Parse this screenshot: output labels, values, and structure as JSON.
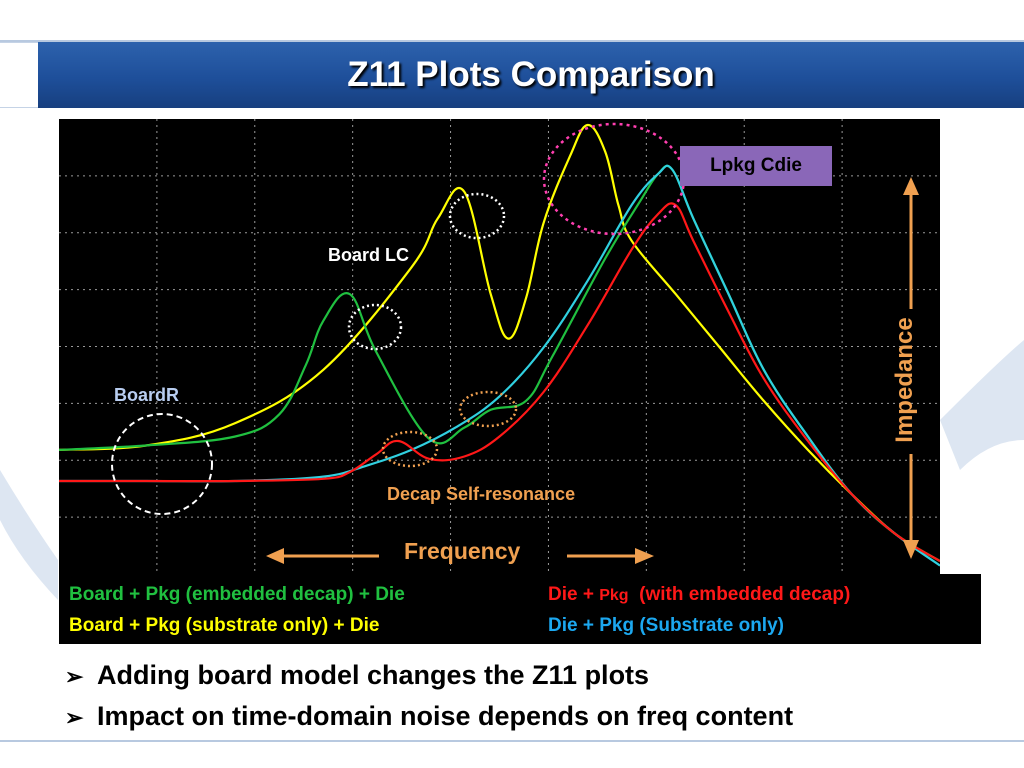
{
  "slide": {
    "title": "Z11 Plots Comparison",
    "bullets": [
      {
        "marker": "➢",
        "text": "Adding board model changes the Z11 plots"
      },
      {
        "marker": "➢",
        "text": "Impact on time-domain noise depends on freq content"
      }
    ]
  },
  "chart_data": {
    "type": "line",
    "title": "",
    "xlabel": "Frequency",
    "ylabel": "Impedance",
    "xlim": [
      0,
      10
    ],
    "ylim": [
      0,
      10
    ],
    "grid": true,
    "legend_placement": "below",
    "series": [
      {
        "name": "Board + Pkg (embedded decap) + Die",
        "color": "#20c040",
        "x": [
          0,
          1,
          2,
          2.5,
          2.8,
          3.0,
          3.3,
          3.6,
          4.2,
          4.6,
          4.9,
          5.3,
          5.6,
          6.2,
          6.6,
          6.8,
          6.96,
          7.2,
          7.6,
          8.0,
          8.5,
          9.0,
          9.5,
          10.0
        ],
        "y": [
          2.7,
          2.8,
          3.0,
          3.5,
          4.6,
          5.6,
          6.2,
          4.9,
          2.95,
          3.2,
          3.6,
          3.8,
          4.8,
          7.0,
          8.3,
          8.9,
          9.0,
          7.9,
          6.2,
          4.5,
          3.0,
          1.7,
          0.8,
          0.2
        ]
      },
      {
        "name": "Board + Pkg (substrate only) + Die",
        "color": "#ffff00",
        "x": [
          0,
          1,
          2,
          3,
          4,
          4.3,
          4.6,
          4.9,
          5.1,
          5.3,
          5.5,
          5.8,
          6.0,
          6.2,
          6.35,
          6.5,
          7.0,
          7.5,
          8.0,
          8.5,
          9.0,
          9.5,
          10.0
        ],
        "y": [
          2.7,
          2.8,
          3.3,
          4.5,
          6.8,
          7.9,
          8.5,
          6.2,
          5.2,
          6.1,
          7.8,
          9.3,
          10.0,
          9.4,
          8.2,
          7.4,
          6.2,
          5.0,
          3.8,
          2.7,
          1.7,
          0.8,
          0.2
        ]
      },
      {
        "name": "Die + Pkg  (with embedded decap)",
        "color": "#ff1818",
        "x": [
          0,
          1,
          2,
          3,
          3.3,
          3.6,
          3.85,
          4.2,
          4.6,
          5.0,
          5.5,
          6.0,
          6.5,
          6.8,
          7.0,
          7.2,
          7.6,
          8.0,
          8.5,
          9.0,
          9.5,
          10.0
        ],
        "y": [
          2.0,
          2.0,
          2.0,
          2.05,
          2.2,
          2.6,
          2.9,
          2.5,
          2.55,
          3.0,
          4.0,
          5.5,
          7.2,
          8.0,
          8.2,
          7.4,
          5.8,
          4.3,
          2.9,
          1.7,
          0.8,
          0.2
        ]
      },
      {
        "name": "Die + Pkg (Substrate only)",
        "color": "#30d0e0",
        "x": [
          0,
          1,
          2,
          3,
          3.5,
          4.0,
          4.5,
          5.0,
          5.5,
          6.0,
          6.5,
          6.8,
          6.96,
          7.2,
          7.6,
          8.0,
          8.5,
          9.0,
          9.5,
          10.0
        ],
        "y": [
          2.0,
          2.0,
          2.0,
          2.1,
          2.35,
          2.7,
          3.2,
          3.9,
          5.0,
          6.5,
          8.2,
          8.9,
          9.0,
          7.9,
          6.2,
          4.5,
          3.0,
          1.7,
          0.8,
          0.1
        ]
      }
    ],
    "annotations": [
      {
        "text": "Lpkg  Cdie"
      },
      {
        "text": "Board LC"
      },
      {
        "text": "BoardR"
      },
      {
        "text": "Decap Self-resonance"
      }
    ]
  },
  "legend": {
    "green": "Board + Pkg (embedded decap) + Die",
    "yellow": "Board + Pkg (substrate only) + Die",
    "red_a": "Die + ",
    "red_b": "Pkg",
    "red_c": "  (with embedded decap)",
    "cyan": "Die + Pkg (Substrate only)"
  },
  "colors": {
    "title_bar": "#1e4f9a",
    "accent_orange": "#f0a050",
    "plot_background": "#000000",
    "annotation_box": "#8a67b8"
  }
}
